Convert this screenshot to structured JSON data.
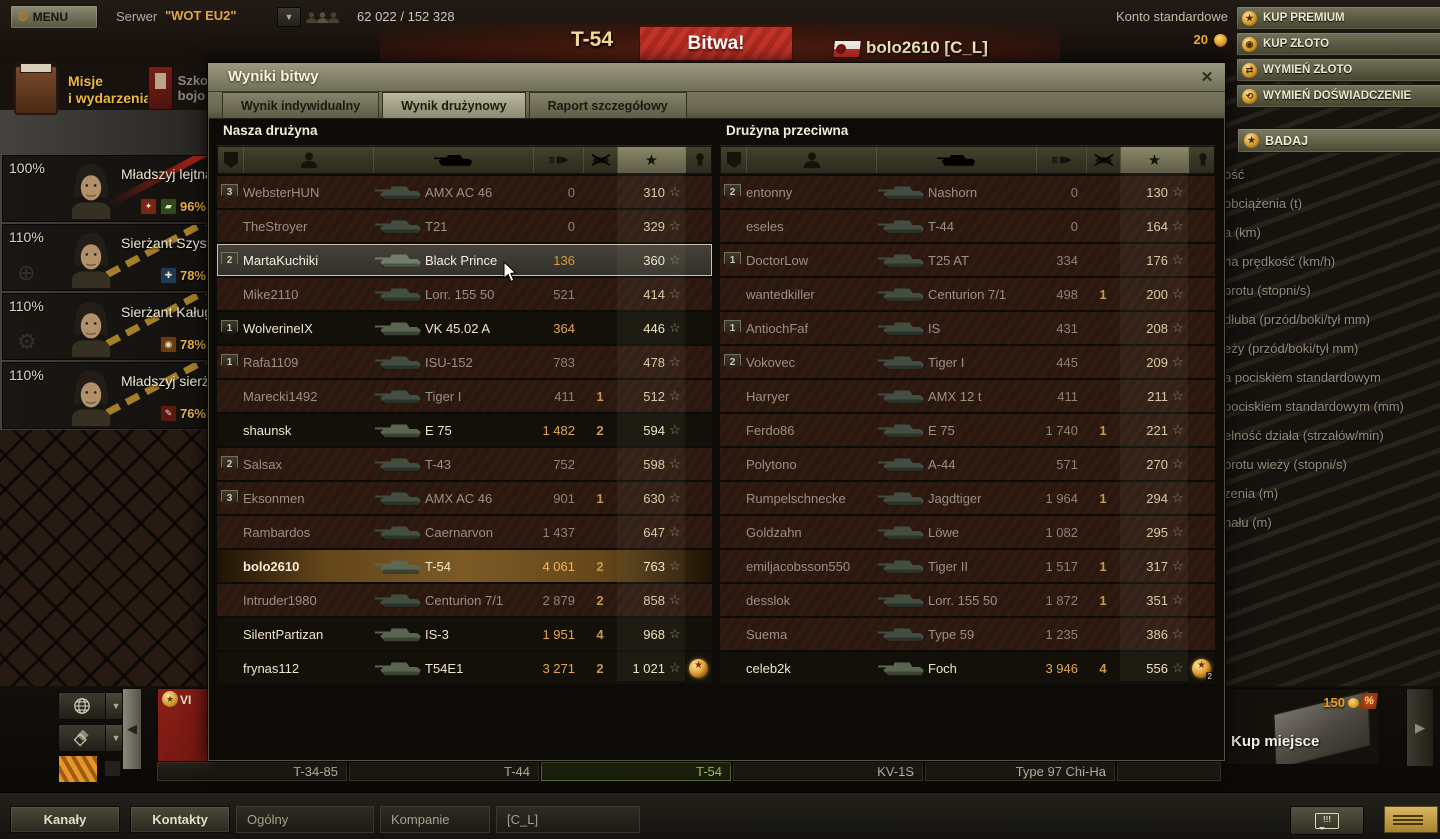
{
  "colors": {
    "accent_gold": "#efa92f",
    "battle_red": "#b02b20",
    "selected_green": "#b9d257",
    "self_row": "#7b5a26"
  },
  "top_bar": {
    "menu_label": "MENU",
    "server_label": "Serwer",
    "server_value": "\"WOT EU2\"",
    "online_count": "62 022 / 152 328",
    "account_status": "Konto standardowe"
  },
  "header": {
    "vehicle_name": "T-54",
    "battle_button_label": "Bitwa!",
    "player_name": "bolo2610 [C_L]",
    "gold_amount": "20"
  },
  "store_buttons": [
    {
      "label": "KUP PREMIUM",
      "icon": "premium-star-icon"
    },
    {
      "label": "KUP ZŁOTO",
      "icon": "gold-coins-icon"
    },
    {
      "label": "WYMIEŃ ZŁOTO",
      "icon": "exchange-gold-icon"
    },
    {
      "label": "WYMIEŃ DOŚWIADCZENIE",
      "icon": "exchange-xp-icon"
    }
  ],
  "left_menu": {
    "missions_line1": "Misje",
    "missions_line2": "i wydarzenia",
    "school_line1": "Szko",
    "school_line2": "bojo"
  },
  "research_button": "BADAJ",
  "vehicle_stats_labels": [
    "ość",
    "obciążenia (t)",
    "a (km)",
    "na prędkość (km/h)",
    "brotu (stopni/s)",
    "dłuba (przód/boki/tył mm)",
    "eży (przód/boki/tył mm)",
    "a pociskiem standardowym",
    "pociskiem standardowym (mm)",
    "elność działa (strzałów/min)",
    "brotu wieży (stopni/s)",
    "zenia (m)",
    "nału (m)"
  ],
  "crew": [
    {
      "training": "100%",
      "name": "Mładszyj lejtnan",
      "skill": "96%",
      "ribbon": "red",
      "ghost": "",
      "icons": [
        {
          "name": "sixth-sense-skill-icon",
          "bg": "#7a2415",
          "ch": "✦"
        },
        {
          "name": "camouflage-skill-icon",
          "bg": "#2f4a1e",
          "ch": "▰"
        }
      ]
    },
    {
      "training": "110%",
      "name": "Sierżant Szyszk",
      "skill": "78%",
      "ribbon": "gold",
      "ghost": "⊕",
      "icons": [
        {
          "name": "repair-skill-icon",
          "bg": "#1d3a56",
          "ch": "✚"
        }
      ]
    },
    {
      "training": "110%",
      "name": "Sierżant Kaługin",
      "skill": "78%",
      "ribbon": "gold",
      "ghost": "⚙",
      "icons": [
        {
          "name": "firefighting-skill-icon",
          "bg": "#6b3a10",
          "ch": "◉"
        }
      ]
    },
    {
      "training": "110%",
      "name": "Mładszyj sierża",
      "skill": "76%",
      "ribbon": "gold",
      "ghost": "",
      "icons": [
        {
          "name": "repair-skill-icon",
          "bg": "#5a1a12",
          "ch": "✎"
        }
      ]
    }
  ],
  "battle_results": {
    "title": "Wyniki bitwy",
    "close_glyph": "✕",
    "tabs": [
      {
        "label": "Wynik indywidualny",
        "active": false
      },
      {
        "label": "Wynik drużynowy",
        "active": true
      },
      {
        "label": "Raport szczegółowy",
        "active": false
      }
    ],
    "columns": [
      "squad",
      "player",
      "vehicle",
      "damage",
      "kills",
      "experience",
      "medals"
    ],
    "ally_team": {
      "title": "Nasza drużyna",
      "rows": [
        {
          "squad": "3",
          "player": "WebsterHUN",
          "tank": "AMX AC 46",
          "dmg": "0",
          "kills": "",
          "xp": "310",
          "state": "dead",
          "medal": false
        },
        {
          "squad": "",
          "player": "TheStroyer",
          "tank": "T21",
          "dmg": "0",
          "kills": "",
          "xp": "329",
          "state": "dead",
          "medal": false
        },
        {
          "squad": "2",
          "player": "MartaKuchiki",
          "tank": "Black Prince",
          "dmg": "136",
          "kills": "",
          "xp": "360",
          "state": "hover",
          "medal": false
        },
        {
          "squad": "",
          "player": "Mike2110",
          "tank": "Lorr. 155 50",
          "dmg": "521",
          "kills": "",
          "xp": "414",
          "state": "dead",
          "medal": false
        },
        {
          "squad": "1",
          "player": "WolverineIX",
          "tank": "VK 45.02 A",
          "dmg": "364",
          "kills": "",
          "xp": "446",
          "state": "alive",
          "medal": false
        },
        {
          "squad": "1",
          "player": "Rafa1109",
          "tank": "ISU-152",
          "dmg": "783",
          "kills": "",
          "xp": "478",
          "state": "dead",
          "medal": false
        },
        {
          "squad": "",
          "player": "Marecki1492",
          "tank": "Tiger I",
          "dmg": "411",
          "kills": "1",
          "xp": "512",
          "state": "dead",
          "medal": false
        },
        {
          "squad": "",
          "player": "shaunsk",
          "tank": "E 75",
          "dmg": "1 482",
          "kills": "2",
          "xp": "594",
          "state": "alive",
          "medal": false
        },
        {
          "squad": "2",
          "player": "Salsax",
          "tank": "T-43",
          "dmg": "752",
          "kills": "",
          "xp": "598",
          "state": "dead",
          "medal": false
        },
        {
          "squad": "3",
          "player": "Eksonmen",
          "tank": "AMX AC 46",
          "dmg": "901",
          "kills": "1",
          "xp": "630",
          "state": "dead",
          "medal": false
        },
        {
          "squad": "",
          "player": "Rambardos",
          "tank": "Caernarvon",
          "dmg": "1 437",
          "kills": "",
          "xp": "647",
          "state": "dead",
          "medal": false
        },
        {
          "squad": "",
          "player": "bolo2610",
          "tank": "T-54",
          "dmg": "4 061",
          "kills": "2",
          "xp": "763",
          "state": "self",
          "medal": false
        },
        {
          "squad": "",
          "player": "Intruder1980",
          "tank": "Centurion 7/1",
          "dmg": "2 879",
          "kills": "2",
          "xp": "858",
          "state": "dead",
          "medal": false
        },
        {
          "squad": "",
          "player": "SilentPartizan",
          "tank": "IS-3",
          "dmg": "1 951",
          "kills": "4",
          "xp": "968",
          "state": "alive",
          "medal": false
        },
        {
          "squad": "",
          "player": "frynas112",
          "tank": "T54E1",
          "dmg": "3 271",
          "kills": "2",
          "xp": "1 021",
          "state": "alive",
          "medal": true,
          "medal_count": ""
        }
      ]
    },
    "enemy_team": {
      "title": "Drużyna przeciwna",
      "rows": [
        {
          "squad": "2",
          "player": "entonny",
          "tank": "Nashorn",
          "dmg": "0",
          "kills": "",
          "xp": "130",
          "state": "dead",
          "medal": false
        },
        {
          "squad": "",
          "player": "eseles",
          "tank": "T-44",
          "dmg": "0",
          "kills": "",
          "xp": "164",
          "state": "dead",
          "medal": false
        },
        {
          "squad": "1",
          "player": "DoctorLow",
          "tank": "T25 AT",
          "dmg": "334",
          "kills": "",
          "xp": "176",
          "state": "dead",
          "medal": false
        },
        {
          "squad": "",
          "player": "wantedkiller",
          "tank": "Centurion 7/1",
          "dmg": "498",
          "kills": "1",
          "xp": "200",
          "state": "dead",
          "medal": false
        },
        {
          "squad": "1",
          "player": "AntiochFaf",
          "tank": "IS",
          "dmg": "431",
          "kills": "",
          "xp": "208",
          "state": "dead",
          "medal": false
        },
        {
          "squad": "2",
          "player": "Vokovec",
          "tank": "Tiger I",
          "dmg": "445",
          "kills": "",
          "xp": "209",
          "state": "dead",
          "medal": false
        },
        {
          "squad": "",
          "player": "Harryer",
          "tank": "AMX 12 t",
          "dmg": "411",
          "kills": "",
          "xp": "211",
          "state": "dead",
          "medal": false
        },
        {
          "squad": "",
          "player": "Ferdo86",
          "tank": "E 75",
          "dmg": "1 740",
          "kills": "1",
          "xp": "221",
          "state": "dead",
          "medal": false
        },
        {
          "squad": "",
          "player": "Polytono",
          "tank": "A-44",
          "dmg": "571",
          "kills": "",
          "xp": "270",
          "state": "dead",
          "medal": false
        },
        {
          "squad": "",
          "player": "Rumpelschnecke",
          "tank": "Jagdtiger",
          "dmg": "1 964",
          "kills": "1",
          "xp": "294",
          "state": "dead",
          "medal": false
        },
        {
          "squad": "",
          "player": "Goldzahn",
          "tank": "Löwe",
          "dmg": "1 082",
          "kills": "",
          "xp": "295",
          "state": "dead",
          "medal": false
        },
        {
          "squad": "",
          "player": "emiljacobsson550",
          "tank": "Tiger II",
          "dmg": "1 517",
          "kills": "1",
          "xp": "317",
          "state": "dead",
          "medal": false
        },
        {
          "squad": "",
          "player": "desslok",
          "tank": "Lorr. 155 50",
          "dmg": "1 872",
          "kills": "1",
          "xp": "351",
          "state": "dead",
          "medal": false
        },
        {
          "squad": "",
          "player": "Suema",
          "tank": "Type 59",
          "dmg": "1 235",
          "kills": "",
          "xp": "386",
          "state": "dead",
          "medal": false
        },
        {
          "squad": "",
          "player": "celeb2k",
          "tank": "Foch",
          "dmg": "3 946",
          "kills": "4",
          "xp": "556",
          "state": "alive",
          "medal": true,
          "medal_count": "2"
        }
      ]
    }
  },
  "carousel": {
    "first_card_tier": "VI",
    "plates": [
      {
        "label": "T-34-85",
        "selected": false
      },
      {
        "label": "T-44",
        "selected": false
      },
      {
        "label": "T-54",
        "selected": true
      },
      {
        "label": "KV-1S",
        "selected": false
      },
      {
        "label": "Type 97 Chi-Ha",
        "selected": false
      },
      {
        "label": "",
        "selected": false
      }
    ],
    "buy_slot": {
      "label": "Kup miejsce",
      "price": "150"
    }
  },
  "taskbar": {
    "channels_label": "Kanały",
    "contacts_label": "Kontakty",
    "channel_tabs": [
      "Ogólny",
      "Kompanie",
      "[C_L]"
    ]
  }
}
